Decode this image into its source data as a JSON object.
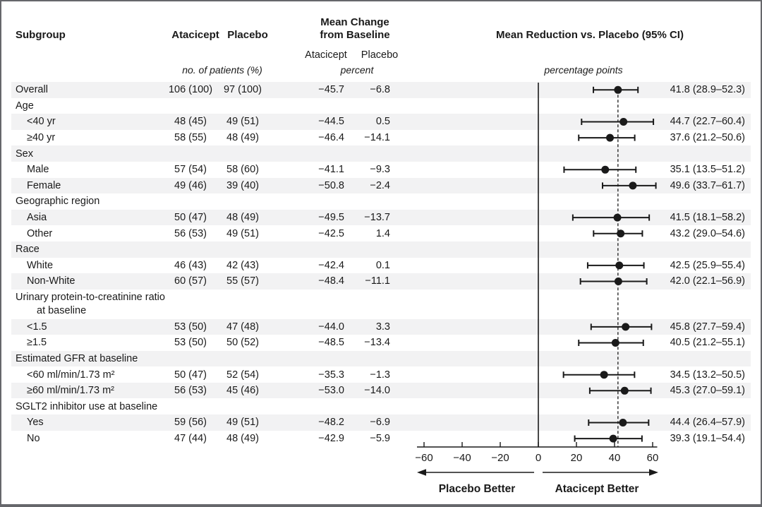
{
  "header": {
    "subgroup": "Subgroup",
    "atacicept_col": "Atacicept",
    "placebo_col": "Placebo",
    "mean_change_title_line1": "Mean Change",
    "mean_change_title_line2": "from Baseline",
    "mean_change_sub_atacicept": "Atacicept",
    "mean_change_sub_placebo": "Placebo",
    "patients_unit_label": "no. of patients (%)",
    "percent_unit_label": "percent",
    "reduction_title": "Mean Reduction vs. Placebo (95% CI)",
    "reduction_unit_label": "percentage points"
  },
  "colors": {
    "ink": "#1a1a1a",
    "stripe": "#f2f2f3",
    "border": "#66676b"
  },
  "chart_data": {
    "type": "forest",
    "title": "Mean Reduction vs. Placebo (95% CI)",
    "x_unit": "percentage points",
    "xlim": [
      -60,
      60
    ],
    "xticks": [
      -60,
      -40,
      -20,
      0,
      20,
      40,
      60
    ],
    "xtick_labels": [
      "−60",
      "−40",
      "−20",
      "0",
      "20",
      "40",
      "60"
    ],
    "reference_line_x": 0,
    "dashed_line_x": 41.8,
    "left_direction_label": "Placebo Better",
    "right_direction_label": "Atacicept Better",
    "rows": [
      {
        "kind": "data",
        "label": "Overall",
        "indent": 0,
        "shaded": true,
        "atacicept_n": "106 (100)",
        "placebo_n": "97 (100)",
        "atacicept_pct": "−45.7",
        "placebo_pct": "−6.8",
        "ci_label": "41.8 (28.9–52.3)",
        "estimate": 41.8,
        "ci_low": 28.9,
        "ci_high": 52.3
      },
      {
        "kind": "section",
        "label": "Age",
        "indent": 0,
        "shaded": false
      },
      {
        "kind": "data",
        "label": "<40 yr",
        "indent": 1,
        "shaded": true,
        "atacicept_n": "48 (45)",
        "placebo_n": "49 (51)",
        "atacicept_pct": "−44.5",
        "placebo_pct": "0.5",
        "ci_label": "44.7 (22.7–60.4)",
        "estimate": 44.7,
        "ci_low": 22.7,
        "ci_high": 60.4
      },
      {
        "kind": "data",
        "label": "≥40 yr",
        "indent": 1,
        "shaded": false,
        "atacicept_n": "58 (55)",
        "placebo_n": "48 (49)",
        "atacicept_pct": "−46.4",
        "placebo_pct": "−14.1",
        "ci_label": "37.6 (21.2–50.6)",
        "estimate": 37.6,
        "ci_low": 21.2,
        "ci_high": 50.6
      },
      {
        "kind": "section",
        "label": "Sex",
        "indent": 0,
        "shaded": true
      },
      {
        "kind": "data",
        "label": "Male",
        "indent": 1,
        "shaded": false,
        "atacicept_n": "57 (54)",
        "placebo_n": "58 (60)",
        "atacicept_pct": "−41.1",
        "placebo_pct": "−9.3",
        "ci_label": "35.1 (13.5–51.2)",
        "estimate": 35.1,
        "ci_low": 13.5,
        "ci_high": 51.2
      },
      {
        "kind": "data",
        "label": "Female",
        "indent": 1,
        "shaded": true,
        "atacicept_n": "49 (46)",
        "placebo_n": "39 (40)",
        "atacicept_pct": "−50.8",
        "placebo_pct": "−2.4",
        "ci_label": "49.6 (33.7–61.7)",
        "estimate": 49.6,
        "ci_low": 33.7,
        "ci_high": 61.7
      },
      {
        "kind": "section",
        "label": "Geographic region",
        "indent": 0,
        "shaded": false
      },
      {
        "kind": "data",
        "label": "Asia",
        "indent": 1,
        "shaded": true,
        "atacicept_n": "50 (47)",
        "placebo_n": "48 (49)",
        "atacicept_pct": "−49.5",
        "placebo_pct": "−13.7",
        "ci_label": "41.5 (18.1–58.2)",
        "estimate": 41.5,
        "ci_low": 18.1,
        "ci_high": 58.2
      },
      {
        "kind": "data",
        "label": "Other",
        "indent": 1,
        "shaded": false,
        "atacicept_n": "56 (53)",
        "placebo_n": "49 (51)",
        "atacicept_pct": "−42.5",
        "placebo_pct": "1.4",
        "ci_label": "43.2 (29.0–54.6)",
        "estimate": 43.2,
        "ci_low": 29.0,
        "ci_high": 54.6
      },
      {
        "kind": "section",
        "label": "Race",
        "indent": 0,
        "shaded": true
      },
      {
        "kind": "data",
        "label": "White",
        "indent": 1,
        "shaded": false,
        "atacicept_n": "46 (43)",
        "placebo_n": "42 (43)",
        "atacicept_pct": "−42.4",
        "placebo_pct": "0.1",
        "ci_label": "42.5 (25.9–55.4)",
        "estimate": 42.5,
        "ci_low": 25.9,
        "ci_high": 55.4
      },
      {
        "kind": "data",
        "label": "Non-White",
        "indent": 1,
        "shaded": true,
        "atacicept_n": "60 (57)",
        "placebo_n": "55 (57)",
        "atacicept_pct": "−48.4",
        "placebo_pct": "−11.1",
        "ci_label": "42.0 (22.1–56.9)",
        "estimate": 42.0,
        "ci_low": 22.1,
        "ci_high": 56.9
      },
      {
        "kind": "section",
        "label": "Urinary protein-to-creatinine ratio",
        "label_line2": "at baseline",
        "indent": 0,
        "shaded": false,
        "double": true
      },
      {
        "kind": "data",
        "label": "<1.5",
        "indent": 1,
        "shaded": true,
        "atacicept_n": "53 (50)",
        "placebo_n": "47 (48)",
        "atacicept_pct": "−44.0",
        "placebo_pct": "3.3",
        "ci_label": "45.8 (27.7–59.4)",
        "estimate": 45.8,
        "ci_low": 27.7,
        "ci_high": 59.4
      },
      {
        "kind": "data",
        "label": "≥1.5",
        "indent": 1,
        "shaded": false,
        "atacicept_n": "53 (50)",
        "placebo_n": "50 (52)",
        "atacicept_pct": "−48.5",
        "placebo_pct": "−13.4",
        "ci_label": "40.5 (21.2–55.1)",
        "estimate": 40.5,
        "ci_low": 21.2,
        "ci_high": 55.1
      },
      {
        "kind": "section",
        "label": "Estimated GFR at baseline",
        "indent": 0,
        "shaded": true
      },
      {
        "kind": "data",
        "label": "<60 ml/min/1.73 m²",
        "indent": 1,
        "shaded": false,
        "atacicept_n": "50 (47)",
        "placebo_n": "52 (54)",
        "atacicept_pct": "−35.3",
        "placebo_pct": "−1.3",
        "ci_label": "34.5 (13.2–50.5)",
        "estimate": 34.5,
        "ci_low": 13.2,
        "ci_high": 50.5
      },
      {
        "kind": "data",
        "label": "≥60 ml/min/1.73 m²",
        "indent": 1,
        "shaded": true,
        "atacicept_n": "56 (53)",
        "placebo_n": "45 (46)",
        "atacicept_pct": "−53.0",
        "placebo_pct": "−14.0",
        "ci_label": "45.3 (27.0–59.1)",
        "estimate": 45.3,
        "ci_low": 27.0,
        "ci_high": 59.1
      },
      {
        "kind": "section",
        "label": "SGLT2 inhibitor use at baseline",
        "indent": 0,
        "shaded": false
      },
      {
        "kind": "data",
        "label": "Yes",
        "indent": 1,
        "shaded": true,
        "atacicept_n": "59 (56)",
        "placebo_n": "49 (51)",
        "atacicept_pct": "−48.2",
        "placebo_pct": "−6.9",
        "ci_label": "44.4 (26.4–57.9)",
        "estimate": 44.4,
        "ci_low": 26.4,
        "ci_high": 57.9
      },
      {
        "kind": "data",
        "label": "No",
        "indent": 1,
        "shaded": false,
        "atacicept_n": "47 (44)",
        "placebo_n": "48 (49)",
        "atacicept_pct": "−42.9",
        "placebo_pct": "−5.9",
        "ci_label": "39.3 (19.1–54.4)",
        "estimate": 39.3,
        "ci_low": 19.1,
        "ci_high": 54.4
      }
    ]
  }
}
